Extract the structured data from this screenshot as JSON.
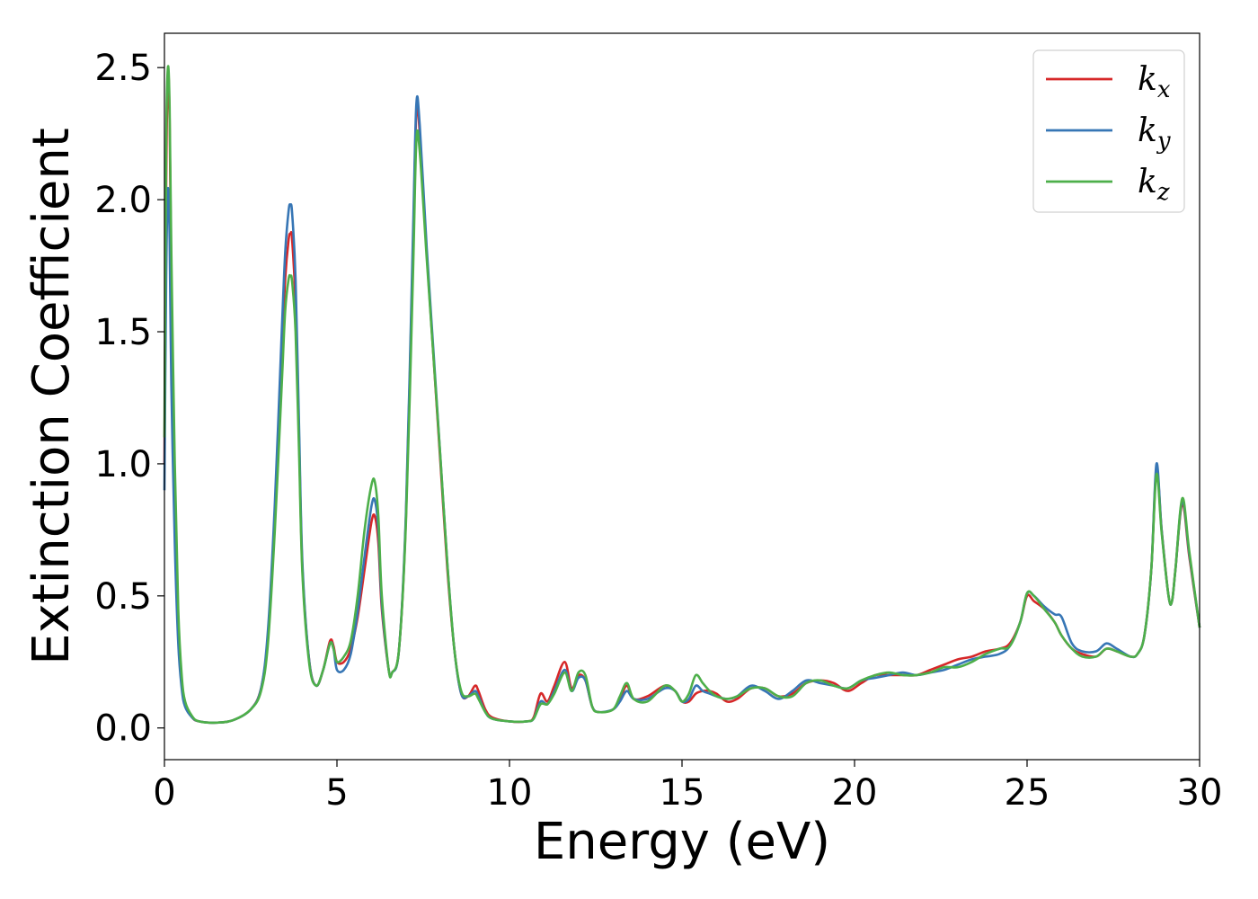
{
  "chart_data": {
    "type": "line",
    "xlabel": "Energy (eV)",
    "ylabel": "Extinction Coefficient",
    "xlim": [
      0,
      30
    ],
    "ylim": [
      -0.12,
      2.63
    ],
    "xticks": [
      0,
      5,
      10,
      15,
      20,
      25,
      30
    ],
    "xtick_labels": [
      "0",
      "5",
      "10",
      "15",
      "20",
      "25",
      "30"
    ],
    "yticks": [
      0.0,
      0.5,
      1.0,
      1.5,
      2.0,
      2.5
    ],
    "ytick_labels": [
      "0.0",
      "0.5",
      "1.0",
      "1.5",
      "2.0",
      "2.5"
    ],
    "grid": false,
    "legend_position": "top-right",
    "series": [
      {
        "name": "k",
        "subscript": "x",
        "color": "#d62728",
        "x": [
          0,
          0.05,
          0.1,
          0.15,
          0.2,
          0.3,
          0.4,
          0.5,
          0.6,
          0.8,
          1.0,
          1.5,
          2.0,
          2.5,
          2.8,
          3.0,
          3.2,
          3.4,
          3.5,
          3.6,
          3.65,
          3.7,
          3.8,
          3.9,
          4.0,
          4.2,
          4.4,
          4.6,
          4.8,
          4.9,
          5.0,
          5.2,
          5.4,
          5.6,
          5.8,
          6.0,
          6.1,
          6.2,
          6.3,
          6.5,
          6.6,
          6.8,
          7.0,
          7.2,
          7.3,
          7.4,
          7.6,
          7.8,
          8.0,
          8.2,
          8.4,
          8.6,
          8.8,
          9.0,
          9.1,
          9.3,
          9.5,
          10.0,
          10.5,
          10.7,
          10.9,
          11.1,
          11.3,
          11.6,
          11.8,
          12.0,
          12.2,
          12.4,
          12.6,
          13.0,
          13.2,
          13.4,
          13.6,
          14.0,
          14.5,
          14.8,
          15.0,
          15.2,
          15.4,
          15.6,
          15.8,
          16.0,
          16.3,
          16.6,
          17.0,
          17.4,
          17.8,
          18.2,
          18.6,
          19.0,
          19.4,
          19.8,
          20.2,
          20.6,
          21.0,
          21.4,
          21.8,
          22.2,
          22.6,
          23.0,
          23.4,
          23.8,
          24.2,
          24.5,
          24.8,
          25.0,
          25.2,
          25.5,
          25.8,
          26.0,
          26.3,
          26.6,
          27.0,
          27.3,
          27.6,
          28.0,
          28.2,
          28.4,
          28.6,
          28.75,
          28.9,
          29.1,
          29.2,
          29.3,
          29.5,
          29.7,
          30.0
        ],
        "y": [
          1.0,
          2.05,
          2.48,
          2.3,
          1.7,
          0.9,
          0.4,
          0.18,
          0.09,
          0.04,
          0.025,
          0.02,
          0.03,
          0.07,
          0.15,
          0.35,
          0.8,
          1.4,
          1.7,
          1.85,
          1.87,
          1.85,
          1.6,
          1.1,
          0.6,
          0.25,
          0.16,
          0.22,
          0.33,
          0.31,
          0.25,
          0.25,
          0.3,
          0.42,
          0.6,
          0.78,
          0.8,
          0.7,
          0.45,
          0.22,
          0.21,
          0.3,
          0.8,
          1.8,
          2.33,
          2.25,
          1.8,
          1.4,
          1.0,
          0.6,
          0.3,
          0.13,
          0.12,
          0.16,
          0.14,
          0.07,
          0.04,
          0.025,
          0.025,
          0.04,
          0.13,
          0.1,
          0.16,
          0.25,
          0.15,
          0.2,
          0.18,
          0.08,
          0.06,
          0.07,
          0.11,
          0.16,
          0.11,
          0.12,
          0.16,
          0.14,
          0.1,
          0.1,
          0.13,
          0.14,
          0.14,
          0.13,
          0.1,
          0.11,
          0.15,
          0.15,
          0.12,
          0.13,
          0.17,
          0.18,
          0.17,
          0.14,
          0.17,
          0.2,
          0.2,
          0.2,
          0.2,
          0.22,
          0.24,
          0.26,
          0.27,
          0.29,
          0.3,
          0.32,
          0.4,
          0.5,
          0.48,
          0.45,
          0.4,
          0.35,
          0.3,
          0.28,
          0.27,
          0.3,
          0.29,
          0.27,
          0.28,
          0.35,
          0.6,
          0.98,
          0.75,
          0.5,
          0.48,
          0.6,
          0.85,
          0.65,
          0.38
        ]
      },
      {
        "name": "k",
        "subscript": "y",
        "color": "#3776b5",
        "x": [
          0,
          0.05,
          0.1,
          0.15,
          0.2,
          0.3,
          0.4,
          0.5,
          0.6,
          0.8,
          1.0,
          1.5,
          2.0,
          2.5,
          2.8,
          3.0,
          3.2,
          3.4,
          3.5,
          3.6,
          3.65,
          3.7,
          3.8,
          3.9,
          4.0,
          4.2,
          4.4,
          4.6,
          4.8,
          4.9,
          5.0,
          5.2,
          5.4,
          5.6,
          5.8,
          6.0,
          6.1,
          6.2,
          6.3,
          6.5,
          6.6,
          6.8,
          7.0,
          7.2,
          7.3,
          7.4,
          7.6,
          7.8,
          8.0,
          8.2,
          8.4,
          8.6,
          8.8,
          9.0,
          9.1,
          9.3,
          9.5,
          10.0,
          10.5,
          10.7,
          10.9,
          11.1,
          11.3,
          11.6,
          11.8,
          12.0,
          12.2,
          12.4,
          12.6,
          13.0,
          13.2,
          13.4,
          13.6,
          14.0,
          14.5,
          14.8,
          15.0,
          15.2,
          15.4,
          15.6,
          15.8,
          16.0,
          16.3,
          16.6,
          17.0,
          17.4,
          17.8,
          18.2,
          18.6,
          19.0,
          19.4,
          19.8,
          20.2,
          20.6,
          21.0,
          21.4,
          21.8,
          22.2,
          22.6,
          23.0,
          23.4,
          23.8,
          24.2,
          24.5,
          24.8,
          25.0,
          25.2,
          25.5,
          25.8,
          26.0,
          26.3,
          26.6,
          27.0,
          27.3,
          27.6,
          28.0,
          28.2,
          28.4,
          28.6,
          28.75,
          28.9,
          29.1,
          29.2,
          29.3,
          29.5,
          29.7,
          30.0
        ],
        "y": [
          0.9,
          1.7,
          2.04,
          1.85,
          1.3,
          0.7,
          0.32,
          0.15,
          0.08,
          0.04,
          0.025,
          0.02,
          0.03,
          0.07,
          0.15,
          0.37,
          0.85,
          1.5,
          1.8,
          1.96,
          1.98,
          1.95,
          1.7,
          1.15,
          0.62,
          0.25,
          0.16,
          0.22,
          0.32,
          0.3,
          0.22,
          0.22,
          0.28,
          0.44,
          0.65,
          0.84,
          0.86,
          0.75,
          0.47,
          0.22,
          0.21,
          0.3,
          0.82,
          1.85,
          2.36,
          2.28,
          1.82,
          1.42,
          1.02,
          0.62,
          0.3,
          0.13,
          0.12,
          0.14,
          0.12,
          0.06,
          0.035,
          0.025,
          0.025,
          0.035,
          0.1,
          0.09,
          0.14,
          0.22,
          0.14,
          0.19,
          0.18,
          0.08,
          0.06,
          0.07,
          0.1,
          0.14,
          0.11,
          0.11,
          0.15,
          0.14,
          0.1,
          0.11,
          0.16,
          0.14,
          0.13,
          0.12,
          0.11,
          0.12,
          0.16,
          0.14,
          0.11,
          0.14,
          0.18,
          0.17,
          0.16,
          0.15,
          0.18,
          0.19,
          0.2,
          0.21,
          0.2,
          0.21,
          0.22,
          0.24,
          0.26,
          0.27,
          0.28,
          0.31,
          0.4,
          0.51,
          0.5,
          0.46,
          0.43,
          0.42,
          0.32,
          0.29,
          0.29,
          0.32,
          0.3,
          0.27,
          0.28,
          0.35,
          0.6,
          1.0,
          0.75,
          0.5,
          0.48,
          0.6,
          0.86,
          0.66,
          0.38
        ]
      },
      {
        "name": "k",
        "subscript": "z",
        "color": "#4daf4a",
        "x": [
          0,
          0.05,
          0.1,
          0.15,
          0.2,
          0.3,
          0.4,
          0.5,
          0.6,
          0.8,
          1.0,
          1.5,
          2.0,
          2.5,
          2.8,
          3.0,
          3.2,
          3.4,
          3.5,
          3.6,
          3.65,
          3.7,
          3.8,
          3.9,
          4.0,
          4.2,
          4.4,
          4.6,
          4.8,
          4.9,
          5.0,
          5.2,
          5.4,
          5.6,
          5.8,
          6.0,
          6.1,
          6.2,
          6.3,
          6.5,
          6.6,
          6.8,
          7.0,
          7.2,
          7.3,
          7.4,
          7.6,
          7.8,
          8.0,
          8.2,
          8.4,
          8.6,
          8.8,
          9.0,
          9.1,
          9.3,
          9.5,
          10.0,
          10.5,
          10.7,
          10.9,
          11.1,
          11.3,
          11.6,
          11.8,
          12.0,
          12.2,
          12.4,
          12.6,
          13.0,
          13.2,
          13.4,
          13.6,
          14.0,
          14.5,
          14.8,
          15.0,
          15.2,
          15.4,
          15.6,
          15.8,
          16.0,
          16.3,
          16.6,
          17.0,
          17.4,
          17.8,
          18.2,
          18.6,
          19.0,
          19.4,
          19.8,
          20.2,
          20.6,
          21.0,
          21.4,
          21.8,
          22.2,
          22.6,
          23.0,
          23.4,
          23.8,
          24.2,
          24.5,
          24.8,
          25.0,
          25.2,
          25.5,
          25.8,
          26.0,
          26.3,
          26.6,
          27.0,
          27.3,
          27.6,
          28.0,
          28.2,
          28.4,
          28.6,
          28.75,
          28.9,
          29.1,
          29.2,
          29.3,
          29.5,
          29.7,
          30.0
        ],
        "y": [
          1.1,
          2.2,
          2.5,
          2.35,
          1.8,
          1.0,
          0.45,
          0.2,
          0.1,
          0.045,
          0.025,
          0.02,
          0.03,
          0.07,
          0.14,
          0.32,
          0.75,
          1.3,
          1.58,
          1.7,
          1.71,
          1.69,
          1.5,
          1.05,
          0.58,
          0.24,
          0.16,
          0.22,
          0.32,
          0.3,
          0.25,
          0.27,
          0.33,
          0.5,
          0.75,
          0.92,
          0.93,
          0.8,
          0.5,
          0.22,
          0.21,
          0.3,
          0.78,
          1.7,
          2.22,
          2.18,
          1.78,
          1.4,
          1.02,
          0.62,
          0.3,
          0.14,
          0.12,
          0.13,
          0.11,
          0.06,
          0.035,
          0.025,
          0.025,
          0.035,
          0.09,
          0.09,
          0.13,
          0.21,
          0.14,
          0.21,
          0.2,
          0.08,
          0.06,
          0.07,
          0.12,
          0.17,
          0.11,
          0.1,
          0.16,
          0.14,
          0.1,
          0.13,
          0.2,
          0.17,
          0.14,
          0.12,
          0.11,
          0.12,
          0.15,
          0.15,
          0.12,
          0.12,
          0.17,
          0.18,
          0.16,
          0.15,
          0.18,
          0.2,
          0.21,
          0.2,
          0.2,
          0.21,
          0.23,
          0.23,
          0.25,
          0.28,
          0.3,
          0.31,
          0.4,
          0.51,
          0.5,
          0.45,
          0.4,
          0.35,
          0.3,
          0.27,
          0.27,
          0.3,
          0.29,
          0.27,
          0.28,
          0.35,
          0.6,
          0.96,
          0.74,
          0.5,
          0.48,
          0.6,
          0.87,
          0.67,
          0.38
        ]
      }
    ]
  }
}
